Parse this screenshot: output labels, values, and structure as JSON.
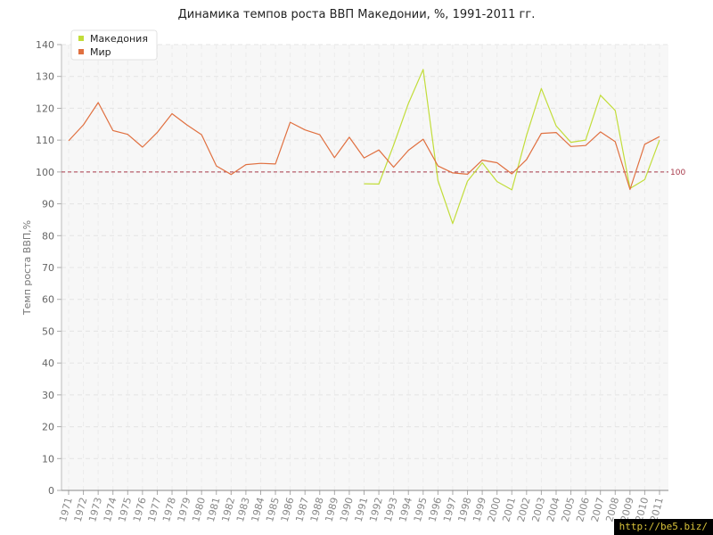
{
  "chart_data": {
    "type": "line",
    "title": "Динамика темпов роста ВВП Македонии, %, 1991-2011 гг.",
    "ylabel": "Темп роста ВВП,%",
    "xlabel": "",
    "ylim": [
      0,
      140
    ],
    "yticks": [
      0,
      10,
      20,
      30,
      40,
      50,
      60,
      70,
      80,
      90,
      100,
      110,
      120,
      130,
      140
    ],
    "categories": [
      "1971",
      "1972",
      "1973",
      "1974",
      "1975",
      "1976",
      "1977",
      "1978",
      "1979",
      "1980",
      "1981",
      "1982",
      "1983",
      "1984",
      "1985",
      "1986",
      "1987",
      "1988",
      "1989",
      "1990",
      "1991",
      "1992",
      "1993",
      "1994",
      "1995",
      "1996",
      "1997",
      "1998",
      "1999",
      "2000",
      "2001",
      "2002",
      "2003",
      "2004",
      "2005",
      "2006",
      "2007",
      "2008",
      "2009",
      "2010",
      "2011"
    ],
    "grid": true,
    "legend_position": "top-left",
    "reference_line": {
      "value": 100,
      "label": "100",
      "color": "#a83a4a"
    },
    "series": [
      {
        "name": "Македония",
        "color": "#c2dd3a",
        "values": [
          null,
          null,
          null,
          null,
          null,
          null,
          null,
          null,
          null,
          null,
          null,
          null,
          null,
          null,
          null,
          null,
          null,
          null,
          null,
          null,
          96.3,
          96.2,
          108.4,
          121.5,
          132.2,
          97.3,
          83.8,
          97.1,
          102.9,
          97.0,
          94.4,
          111.5,
          126.2,
          114.5,
          109.3,
          110.0,
          124.1,
          119.3,
          94.8,
          97.6,
          110.0
        ]
      },
      {
        "name": "Мир",
        "color": "#e07040",
        "values": [
          109.8,
          114.8,
          121.8,
          113.0,
          111.8,
          107.8,
          112.4,
          118.3,
          114.8,
          111.7,
          101.9,
          99.2,
          102.3,
          102.7,
          102.5,
          115.6,
          113.2,
          111.7,
          104.5,
          110.9,
          104.4,
          106.9,
          101.5,
          106.8,
          110.3,
          101.9,
          99.7,
          99.3,
          103.7,
          102.9,
          99.4,
          103.9,
          112.1,
          112.4,
          108.0,
          108.3,
          112.6,
          109.5,
          94.5,
          108.7,
          111.1
        ]
      }
    ]
  },
  "watermark": "http://be5.biz/"
}
